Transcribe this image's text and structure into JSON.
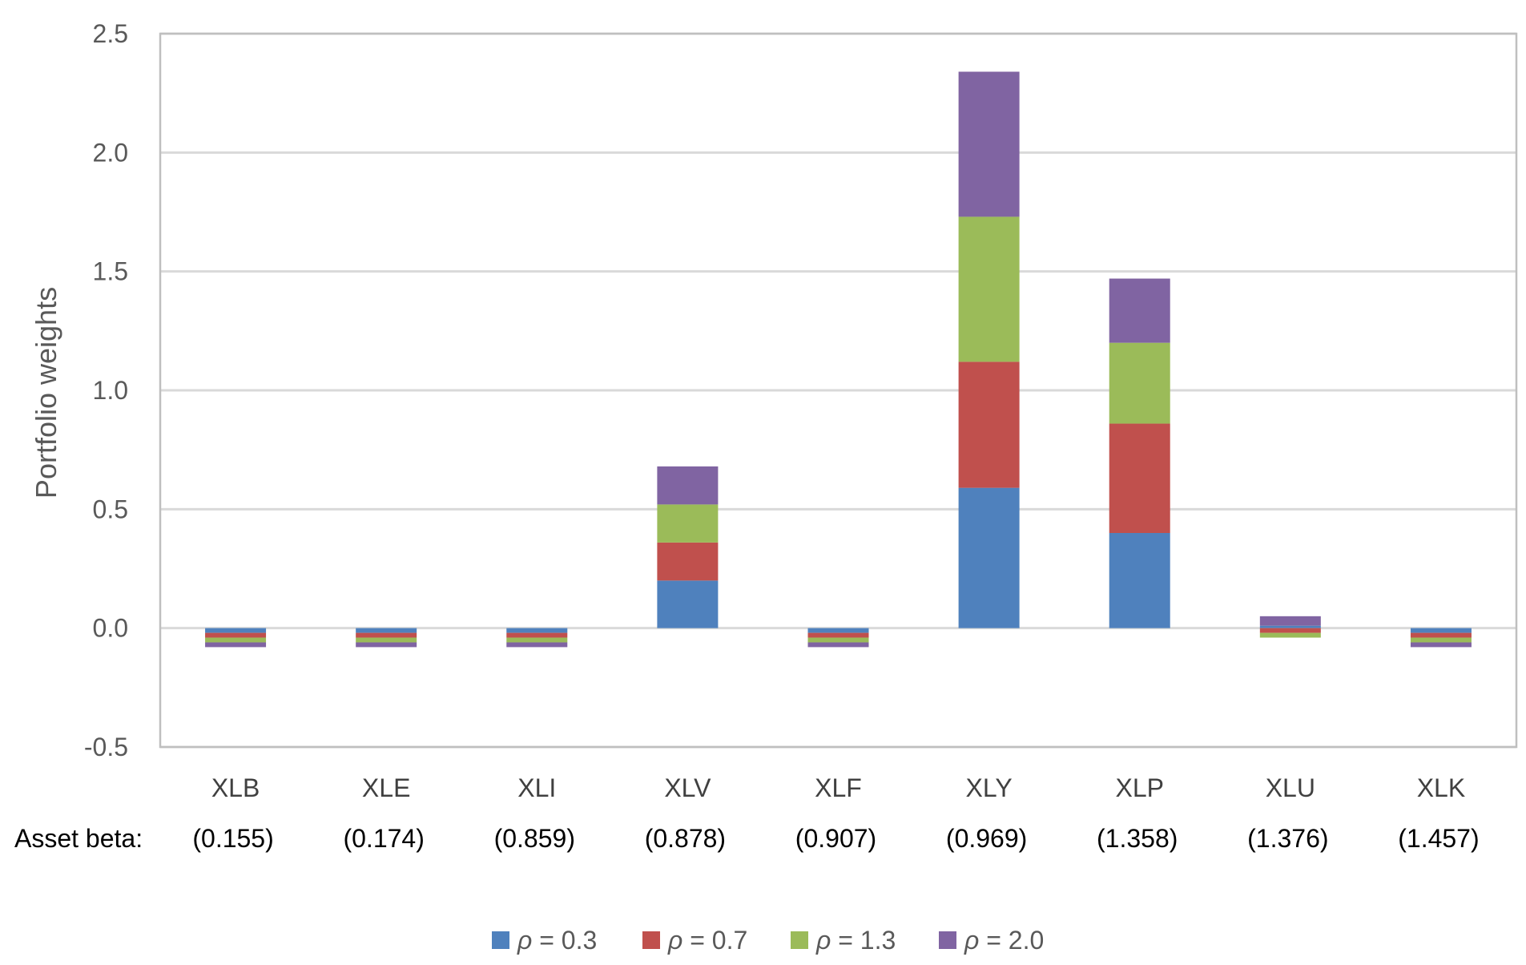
{
  "chart_data": {
    "type": "bar",
    "stacked": true,
    "title": "",
    "xlabel": "",
    "ylabel": "Portfolio weights",
    "ylim": [
      -0.5,
      2.5
    ],
    "yticks": [
      -0.5,
      0.0,
      0.5,
      1.0,
      1.5,
      2.0,
      2.5
    ],
    "ytick_labels": [
      "-0.5",
      "0.0",
      "0.5",
      "1.0",
      "1.5",
      "2.0",
      "2.5"
    ],
    "grid": true,
    "legend_position": "bottom",
    "categories": [
      "XLB",
      "XLE",
      "XLI",
      "XLV",
      "XLF",
      "XLY",
      "XLP",
      "XLU",
      "XLK"
    ],
    "beta_prefix": "Asset beta:",
    "betas": [
      "(0.155)",
      "(0.174)",
      "(0.859)",
      "(0.878)",
      "(0.907)",
      "(0.969)",
      "(1.358)",
      "(1.376)",
      "(1.457)"
    ],
    "series": [
      {
        "name": "ρ = 0.3",
        "symbol": "ρ",
        "label_rest": " = 0.3",
        "color": "#4F81BD",
        "values": [
          -0.02,
          -0.02,
          -0.02,
          0.2,
          -0.02,
          0.59,
          0.4,
          0.01,
          -0.02
        ]
      },
      {
        "name": "ρ = 0.7",
        "symbol": "ρ",
        "label_rest": " = 0.7",
        "color": "#C0504D",
        "values": [
          -0.02,
          -0.02,
          -0.02,
          0.16,
          -0.02,
          0.53,
          0.46,
          -0.02,
          -0.02
        ]
      },
      {
        "name": "ρ = 1.3",
        "symbol": "ρ",
        "label_rest": " = 1.3",
        "color": "#9BBB59",
        "values": [
          -0.02,
          -0.02,
          -0.02,
          0.16,
          -0.02,
          0.61,
          0.34,
          -0.02,
          -0.02
        ]
      },
      {
        "name": "ρ = 2.0",
        "symbol": "ρ",
        "label_rest": " = 2.0",
        "color": "#8064A2",
        "values": [
          -0.02,
          -0.02,
          -0.02,
          0.16,
          -0.02,
          0.61,
          0.27,
          0.04,
          -0.02
        ]
      }
    ]
  },
  "colors": {
    "grid": "#D9D9D9",
    "frame": "#BFBFBF",
    "tick_text": "#595959"
  }
}
